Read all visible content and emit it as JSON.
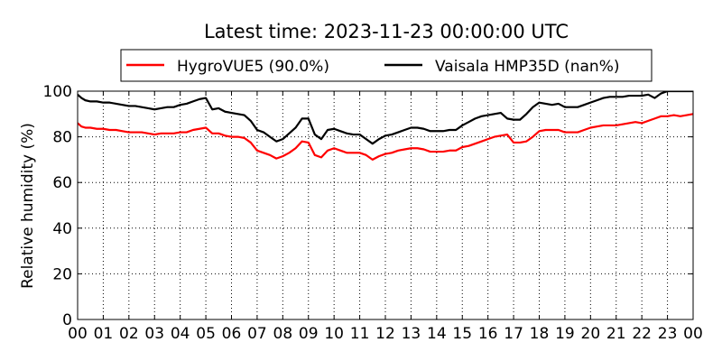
{
  "chart_data": {
    "type": "line",
    "title": "Latest time: 2023-11-23 00:00:00 UTC",
    "xlabel": "",
    "ylabel": "Relative humidity (%)",
    "xlim": [
      0,
      24
    ],
    "ylim": [
      0,
      100
    ],
    "grid": true,
    "legend_position": "top-center",
    "x_tick_labels": [
      "00",
      "01",
      "02",
      "03",
      "04",
      "05",
      "06",
      "07",
      "08",
      "09",
      "10",
      "11",
      "12",
      "13",
      "14",
      "15",
      "16",
      "17",
      "18",
      "19",
      "20",
      "21",
      "22",
      "23",
      "00"
    ],
    "y_tick_labels": [
      "0",
      "20",
      "40",
      "60",
      "80",
      "100"
    ],
    "x_hours": [
      0,
      0.15,
      0.3,
      0.5,
      0.75,
      1,
      1.25,
      1.5,
      1.75,
      2,
      2.25,
      2.5,
      2.75,
      3,
      3.25,
      3.5,
      3.75,
      4,
      4.25,
      4.5,
      4.75,
      5,
      5.25,
      5.5,
      5.75,
      6,
      6.25,
      6.5,
      6.75,
      7,
      7.25,
      7.5,
      7.75,
      8,
      8.25,
      8.5,
      8.75,
      9,
      9.25,
      9.5,
      9.75,
      10,
      10.25,
      10.5,
      10.75,
      11,
      11.25,
      11.5,
      11.75,
      12,
      12.25,
      12.5,
      12.75,
      13,
      13.25,
      13.5,
      13.75,
      14,
      14.25,
      14.5,
      14.75,
      15,
      15.25,
      15.5,
      15.75,
      16,
      16.25,
      16.5,
      16.75,
      17,
      17.25,
      17.5,
      17.75,
      18,
      18.25,
      18.5,
      18.75,
      19,
      19.25,
      19.5,
      19.75,
      20,
      20.25,
      20.5,
      20.75,
      21,
      21.25,
      21.5,
      21.75,
      22,
      22.25,
      22.5,
      22.75,
      23,
      23.25,
      23.5,
      23.75,
      24
    ],
    "series": [
      {
        "name": "HygroVUE5 (90.0%)",
        "color": "#ff0000",
        "values": [
          86,
          84.5,
          84,
          84,
          83.5,
          83.5,
          83,
          83,
          82.5,
          82,
          82,
          82,
          81.5,
          81,
          81.5,
          81.5,
          81.5,
          82,
          82,
          83,
          83.5,
          84,
          81.5,
          81.5,
          80.5,
          80,
          80,
          79.5,
          77.5,
          74,
          73,
          72,
          70.5,
          71.5,
          73,
          75,
          78,
          77.5,
          72,
          71,
          74,
          75,
          74,
          73,
          73,
          73,
          72,
          70,
          71.5,
          72.5,
          73,
          74,
          74.5,
          75,
          75,
          74.5,
          73.5,
          73.5,
          73.5,
          74,
          74,
          75.5,
          76,
          77,
          78,
          79,
          80,
          80.5,
          81,
          77.5,
          77.5,
          78,
          80,
          82.5,
          83,
          83,
          83,
          82,
          82,
          82,
          83,
          84,
          84.5,
          85,
          85,
          85,
          85.5,
          86,
          86.5,
          86,
          87,
          88,
          89,
          89,
          89.5,
          89,
          89.5,
          90
        ]
      },
      {
        "name": "Vaisala HMP35D (nan%)",
        "color": "#000000",
        "values": [
          98.5,
          97,
          96,
          95.5,
          95.5,
          95,
          95,
          94.5,
          94,
          93.5,
          93.5,
          93,
          92.5,
          92,
          92.5,
          93,
          93,
          94,
          94.5,
          95.5,
          96.5,
          97,
          92,
          92.5,
          91,
          90.5,
          90,
          89.5,
          87,
          83,
          82,
          80,
          78,
          79,
          81.5,
          84,
          88,
          88,
          81,
          79,
          83,
          83.5,
          82.5,
          81.5,
          81,
          81,
          79,
          77,
          79,
          80.5,
          81,
          82,
          83,
          84,
          84,
          83.5,
          82.5,
          82.5,
          82.5,
          83,
          83,
          85,
          86.5,
          88,
          89,
          89.5,
          90,
          90.5,
          88,
          87.5,
          87.5,
          90,
          93,
          95,
          94.5,
          94,
          94.5,
          93,
          93,
          93,
          94,
          95,
          96,
          97,
          97.5,
          97.5,
          97.5,
          98,
          98,
          98,
          98.5,
          97,
          99,
          100,
          100,
          100,
          100,
          100
        ]
      }
    ]
  }
}
